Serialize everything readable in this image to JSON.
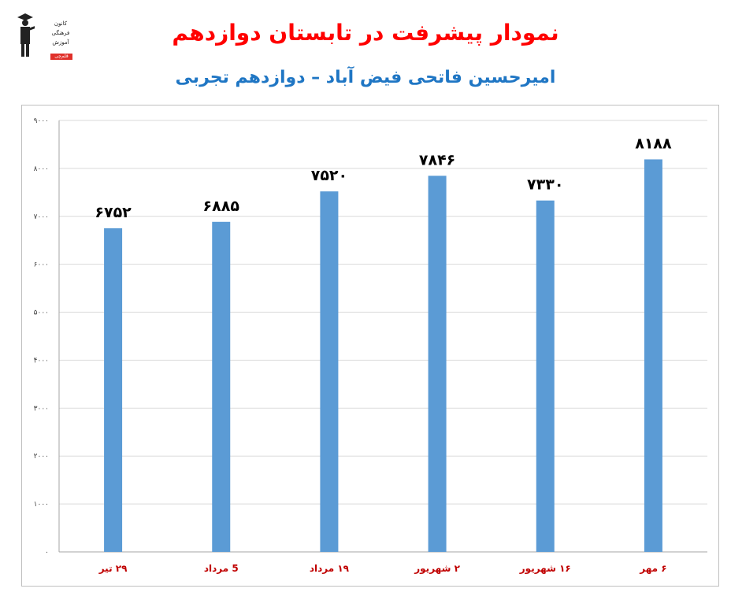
{
  "header": {
    "title": "نمودار پیشرفت در تابستان دوازدهم",
    "subtitle": "امیرحسین فاتحی فیض آباد – دوازدهم تجربی"
  },
  "logo": {
    "line1": "کانون",
    "line2": "فرهنگی",
    "line3": "آموزش",
    "badge": "قلم‌چی"
  },
  "colors": {
    "title": "#ff0000",
    "subtitle": "#1f76c4",
    "bar": "#5b9bd5",
    "category_label": "#c00000",
    "gridline": "#d9d9d9"
  },
  "chart_data": {
    "type": "bar",
    "categories": [
      "۲۹ تیر",
      "5 مرداد",
      "۱۹ مرداد",
      "۲ شهریور",
      "۱۶ شهریور",
      "۶ مهر"
    ],
    "values": [
      6752,
      6885,
      7520,
      7846,
      7330,
      8188
    ],
    "data_labels": [
      "۶۷۵۲",
      "۶۸۸۵",
      "۷۵۲۰",
      "۷۸۴۶",
      "۷۳۳۰",
      "۸۱۸۸"
    ],
    "y_ticks": [
      0,
      1000,
      2000,
      3000,
      4000,
      5000,
      6000,
      7000,
      8000,
      9000
    ],
    "y_tick_labels": [
      "۰",
      "۱۰۰۰",
      "۲۰۰۰",
      "۳۰۰۰",
      "۴۰۰۰",
      "۵۰۰۰",
      "۶۰۰۰",
      "۷۰۰۰",
      "۸۰۰۰",
      "۹۰۰۰"
    ],
    "ylim": [
      0,
      9000
    ],
    "grid": true,
    "legend": "none"
  }
}
